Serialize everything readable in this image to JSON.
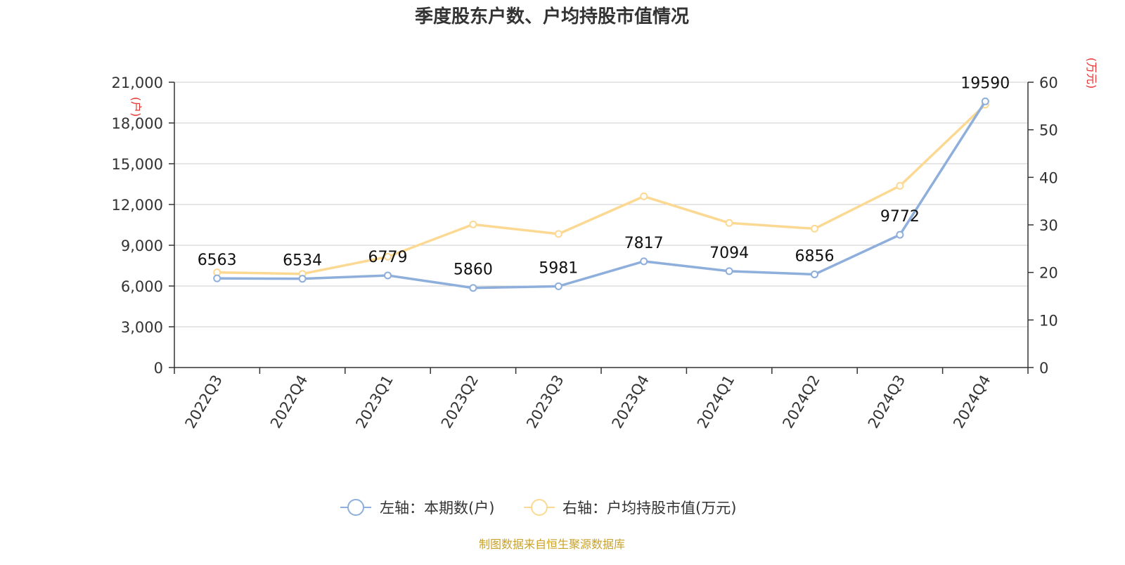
{
  "chart_data": {
    "type": "line",
    "title": "季度股东户数、户均持股市值情况",
    "categories": [
      "2022Q3",
      "2022Q4",
      "2023Q1",
      "2023Q2",
      "2023Q3",
      "2023Q4",
      "2024Q1",
      "2024Q2",
      "2024Q3",
      "2024Q4"
    ],
    "left_axis": {
      "unit_label": "(户)",
      "ylim": [
        0,
        21000
      ],
      "ticks": [
        "0",
        "3,000",
        "6,000",
        "9,000",
        "12,000",
        "15,000",
        "18,000",
        "21,000"
      ],
      "tick_values": [
        0,
        3000,
        6000,
        9000,
        12000,
        15000,
        18000,
        21000
      ]
    },
    "right_axis": {
      "unit_label": "(万元)",
      "ylim": [
        0,
        60
      ],
      "ticks": [
        "0",
        "10",
        "20",
        "30",
        "40",
        "50",
        "60"
      ],
      "tick_values": [
        0,
        10,
        20,
        30,
        40,
        50,
        60
      ]
    },
    "series": [
      {
        "name": "左轴：本期数(户)",
        "axis": "left",
        "color": "#8eaedb",
        "values": [
          6563,
          6534,
          6779,
          5860,
          5981,
          7817,
          7094,
          6856,
          9772,
          19590
        ],
        "data_labels": [
          "6563",
          "6534",
          "6779",
          "5860",
          "5981",
          "7817",
          "7094",
          "6856",
          "9772",
          "19590"
        ]
      },
      {
        "name": "右轴：户均持股市值(万元)",
        "axis": "right",
        "color": "#fcd993",
        "values": [
          20.0,
          19.7,
          23.3,
          30.1,
          28.1,
          36.0,
          30.4,
          29.2,
          38.2,
          55.3
        ]
      }
    ],
    "grid": true,
    "legend_position": "bottom"
  },
  "footer": {
    "source": "制图数据来自恒生聚源数据库",
    "source_color": "#c9a227"
  },
  "colors": {
    "unit_label": "#e8312e",
    "axis": "#333333",
    "grid": "#cccccc"
  }
}
